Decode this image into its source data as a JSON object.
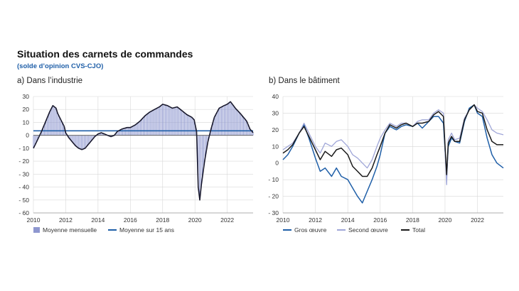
{
  "header": {
    "title": "Situation des carnets de commandes",
    "subtitle": "(solde d’opinion CVS-CJO)"
  },
  "chart_data": [
    {
      "type": "bar+line",
      "panel_title": "a)  Dans l’industrie",
      "xlim": [
        2010,
        2023.6
      ],
      "ylim": [
        -60,
        30
      ],
      "x_ticks": [
        2010,
        2012,
        2014,
        2016,
        2018,
        2020,
        2022
      ],
      "y_ticks": [
        30,
        20,
        10,
        0,
        -10,
        -20,
        -30,
        -40,
        -50,
        -60
      ],
      "reference_line": 3.5,
      "legend": [
        "Moyenne mensuelle",
        "Moyenne sur 15 ans"
      ],
      "series": [
        {
          "name": "Moyenne mensuelle",
          "style": "bars",
          "color": "#8e97cf",
          "x": [
            2010.0,
            2010.2,
            2010.5,
            2010.8,
            2011.0,
            2011.2,
            2011.4,
            2011.5,
            2011.7,
            2011.9,
            2012.0,
            2012.2,
            2012.4,
            2012.6,
            2012.8,
            2013.0,
            2013.2,
            2013.4,
            2013.6,
            2013.8,
            2014.0,
            2014.2,
            2014.4,
            2014.6,
            2014.8,
            2015.0,
            2015.2,
            2015.5,
            2015.8,
            2016.0,
            2016.3,
            2016.6,
            2016.9,
            2017.2,
            2017.5,
            2017.8,
            2018.0,
            2018.3,
            2018.6,
            2018.9,
            2019.2,
            2019.5,
            2019.8,
            2019.95,
            2020.1,
            2020.2,
            2020.3,
            2020.4,
            2020.6,
            2020.8,
            2021.0,
            2021.2,
            2021.5,
            2021.8,
            2022.0,
            2022.2,
            2022.5,
            2022.8,
            2023.0,
            2023.2,
            2023.4,
            2023.6
          ],
          "values": [
            -10,
            -5,
            3,
            12,
            18,
            23,
            21,
            17,
            12,
            7,
            2,
            -2,
            -5,
            -8,
            -10,
            -11,
            -10,
            -7,
            -4,
            -1,
            1,
            2,
            1,
            0,
            -1,
            0,
            3,
            5,
            6,
            6,
            8,
            11,
            15,
            18,
            20,
            22,
            24,
            23,
            21,
            22,
            19,
            16,
            14,
            12,
            3,
            -40,
            -50,
            -38,
            -20,
            -5,
            5,
            14,
            21,
            23,
            24,
            26,
            21,
            17,
            14,
            11,
            5,
            2
          ]
        },
        {
          "name": "Moyenne sur 15 ans",
          "style": "line",
          "color": "#1f5fa8",
          "x": [
            2010,
            2023.6
          ],
          "values": [
            3.5,
            3.5
          ]
        },
        {
          "name": "",
          "style": "line",
          "color": "#1a1a2e",
          "x": [
            2010.0,
            2010.2,
            2010.5,
            2010.8,
            2011.0,
            2011.2,
            2011.4,
            2011.5,
            2011.7,
            2011.9,
            2012.0,
            2012.2,
            2012.4,
            2012.6,
            2012.8,
            2013.0,
            2013.2,
            2013.4,
            2013.6,
            2013.8,
            2014.0,
            2014.2,
            2014.4,
            2014.6,
            2014.8,
            2015.0,
            2015.2,
            2015.5,
            2015.8,
            2016.0,
            2016.3,
            2016.6,
            2016.9,
            2017.2,
            2017.5,
            2017.8,
            2018.0,
            2018.3,
            2018.6,
            2018.9,
            2019.2,
            2019.5,
            2019.8,
            2019.95,
            2020.1,
            2020.2,
            2020.3,
            2020.4,
            2020.6,
            2020.8,
            2021.0,
            2021.2,
            2021.5,
            2021.8,
            2022.0,
            2022.2,
            2022.5,
            2022.8,
            2023.0,
            2023.2,
            2023.4,
            2023.6
          ],
          "values": [
            -10,
            -5,
            3,
            12,
            18,
            23,
            21,
            17,
            12,
            7,
            2,
            -2,
            -5,
            -8,
            -10,
            -11,
            -10,
            -7,
            -4,
            -1,
            1,
            2,
            1,
            0,
            -1,
            0,
            3,
            5,
            6,
            6,
            8,
            11,
            15,
            18,
            20,
            22,
            24,
            23,
            21,
            22,
            19,
            16,
            14,
            12,
            3,
            -40,
            -50,
            -38,
            -20,
            -5,
            5,
            14,
            21,
            23,
            24,
            26,
            21,
            17,
            14,
            11,
            5,
            2
          ]
        }
      ]
    },
    {
      "type": "line",
      "panel_title": "b)  Dans le bâtiment",
      "xlim": [
        2010,
        2023.6
      ],
      "ylim": [
        -30,
        40
      ],
      "x_ticks": [
        2010,
        2012,
        2014,
        2016,
        2018,
        2020,
        2022
      ],
      "y_ticks": [
        40,
        30,
        20,
        10,
        0,
        -10,
        -20,
        -30
      ],
      "legend": [
        "Gros œuvre",
        "Second œuvre",
        "Total"
      ],
      "series": [
        {
          "name": "Gros œuvre",
          "color": "#1f5fa8",
          "x": [
            2010.0,
            2010.3,
            2010.6,
            2011.0,
            2011.3,
            2011.6,
            2012.0,
            2012.3,
            2012.6,
            2013.0,
            2013.3,
            2013.6,
            2014.0,
            2014.3,
            2014.6,
            2014.9,
            2015.2,
            2015.5,
            2015.8,
            2016.0,
            2016.3,
            2016.6,
            2017.0,
            2017.3,
            2017.6,
            2018.0,
            2018.3,
            2018.6,
            2019.0,
            2019.3,
            2019.6,
            2019.9,
            2020.1,
            2020.2,
            2020.4,
            2020.6,
            2020.9,
            2021.2,
            2021.5,
            2021.8,
            2022.0,
            2022.3,
            2022.6,
            2022.9,
            2023.2,
            2023.6
          ],
          "values": [
            2,
            5,
            10,
            18,
            23,
            15,
            3,
            -5,
            -3,
            -8,
            -3,
            -8,
            -10,
            -15,
            -20,
            -24,
            -17,
            -10,
            -2,
            5,
            18,
            22,
            20,
            22,
            23,
            22,
            24,
            21,
            25,
            28,
            28,
            24,
            -8,
            10,
            15,
            13,
            12,
            25,
            33,
            35,
            30,
            28,
            15,
            5,
            0,
            -3
          ]
        },
        {
          "name": "Second œuvre",
          "color": "#9fa6d8",
          "x": [
            2010.0,
            2010.3,
            2010.6,
            2011.0,
            2011.3,
            2011.6,
            2012.0,
            2012.3,
            2012.6,
            2013.0,
            2013.3,
            2013.6,
            2014.0,
            2014.3,
            2014.6,
            2014.9,
            2015.2,
            2015.5,
            2015.8,
            2016.0,
            2016.3,
            2016.6,
            2017.0,
            2017.3,
            2017.6,
            2018.0,
            2018.3,
            2018.6,
            2019.0,
            2019.3,
            2019.6,
            2019.9,
            2020.1,
            2020.2,
            2020.4,
            2020.6,
            2020.9,
            2021.2,
            2021.5,
            2021.8,
            2022.0,
            2022.3,
            2022.6,
            2022.9,
            2023.2,
            2023.6
          ],
          "values": [
            8,
            10,
            12,
            18,
            24,
            18,
            10,
            6,
            12,
            10,
            13,
            14,
            10,
            5,
            3,
            0,
            -3,
            2,
            10,
            15,
            20,
            24,
            22,
            24,
            24,
            22,
            25,
            26,
            26,
            30,
            32,
            30,
            -13,
            14,
            18,
            14,
            15,
            27,
            32,
            35,
            33,
            31,
            26,
            20,
            18,
            17
          ]
        },
        {
          "name": "Total",
          "color": "#1a1a1a",
          "x": [
            2010.0,
            2010.3,
            2010.6,
            2011.0,
            2011.3,
            2011.6,
            2012.0,
            2012.3,
            2012.6,
            2013.0,
            2013.3,
            2013.6,
            2014.0,
            2014.3,
            2014.6,
            2014.9,
            2015.2,
            2015.5,
            2015.8,
            2016.0,
            2016.3,
            2016.6,
            2017.0,
            2017.3,
            2017.6,
            2018.0,
            2018.3,
            2018.6,
            2019.0,
            2019.3,
            2019.6,
            2019.9,
            2020.1,
            2020.2,
            2020.4,
            2020.6,
            2020.9,
            2021.2,
            2021.5,
            2021.8,
            2022.0,
            2022.3,
            2022.6,
            2022.9,
            2023.2,
            2023.6
          ],
          "values": [
            6,
            8,
            11,
            18,
            22,
            16,
            8,
            2,
            7,
            4,
            8,
            9,
            5,
            -2,
            -5,
            -8,
            -8,
            -3,
            5,
            10,
            18,
            23,
            21,
            23,
            24,
            22,
            24,
            24,
            25,
            29,
            31,
            28,
            -7,
            12,
            16,
            13,
            13,
            26,
            32,
            35,
            31,
            30,
            20,
            13,
            11,
            11
          ]
        }
      ]
    }
  ]
}
